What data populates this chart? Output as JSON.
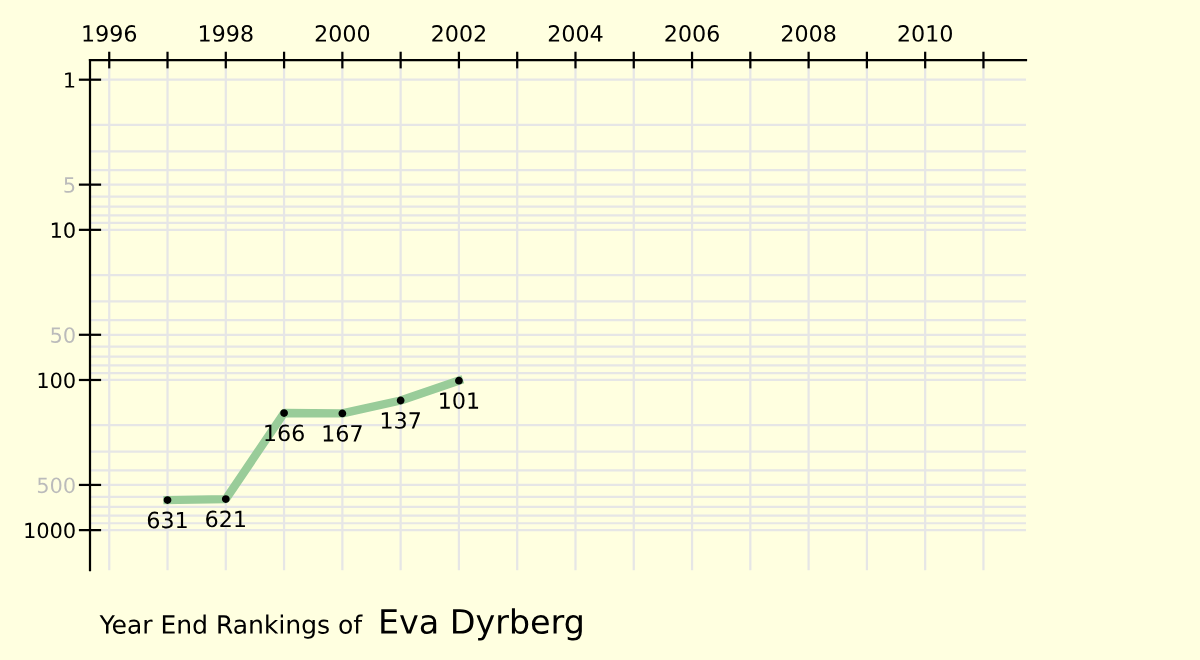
{
  "chart_data": {
    "type": "line",
    "title": "Year End Rankings of",
    "subtitle": "Eva Dyrberg",
    "x": [
      1997,
      1998,
      1999,
      2000,
      2001,
      2002
    ],
    "series": [
      {
        "color": "#99cc99",
        "values": [
          631,
          621,
          166,
          167,
          137,
          101
        ]
      }
    ],
    "data_labels": true,
    "log": "y",
    "marker": "circle",
    "line_style": "solid",
    "grid": true,
    "xlim": [
      1995.67,
      2011.73
    ],
    "ylim": [
      1850,
      0.74
    ],
    "xticks": [
      1996,
      {
        "value": 1997,
        "label": null
      },
      1998,
      {
        "value": 1999,
        "label": null
      },
      2000,
      {
        "value": 2001,
        "label": null
      },
      2002,
      {
        "value": 2003,
        "label": null
      },
      2004,
      {
        "value": 2005,
        "label": null
      },
      2006,
      {
        "value": 2007,
        "label": null
      },
      2008,
      {
        "value": 2009,
        "label": null
      },
      2010,
      {
        "value": 2011,
        "label": null
      }
    ],
    "yticks": [
      1,
      5,
      10,
      50,
      100,
      500,
      1000
    ]
  }
}
